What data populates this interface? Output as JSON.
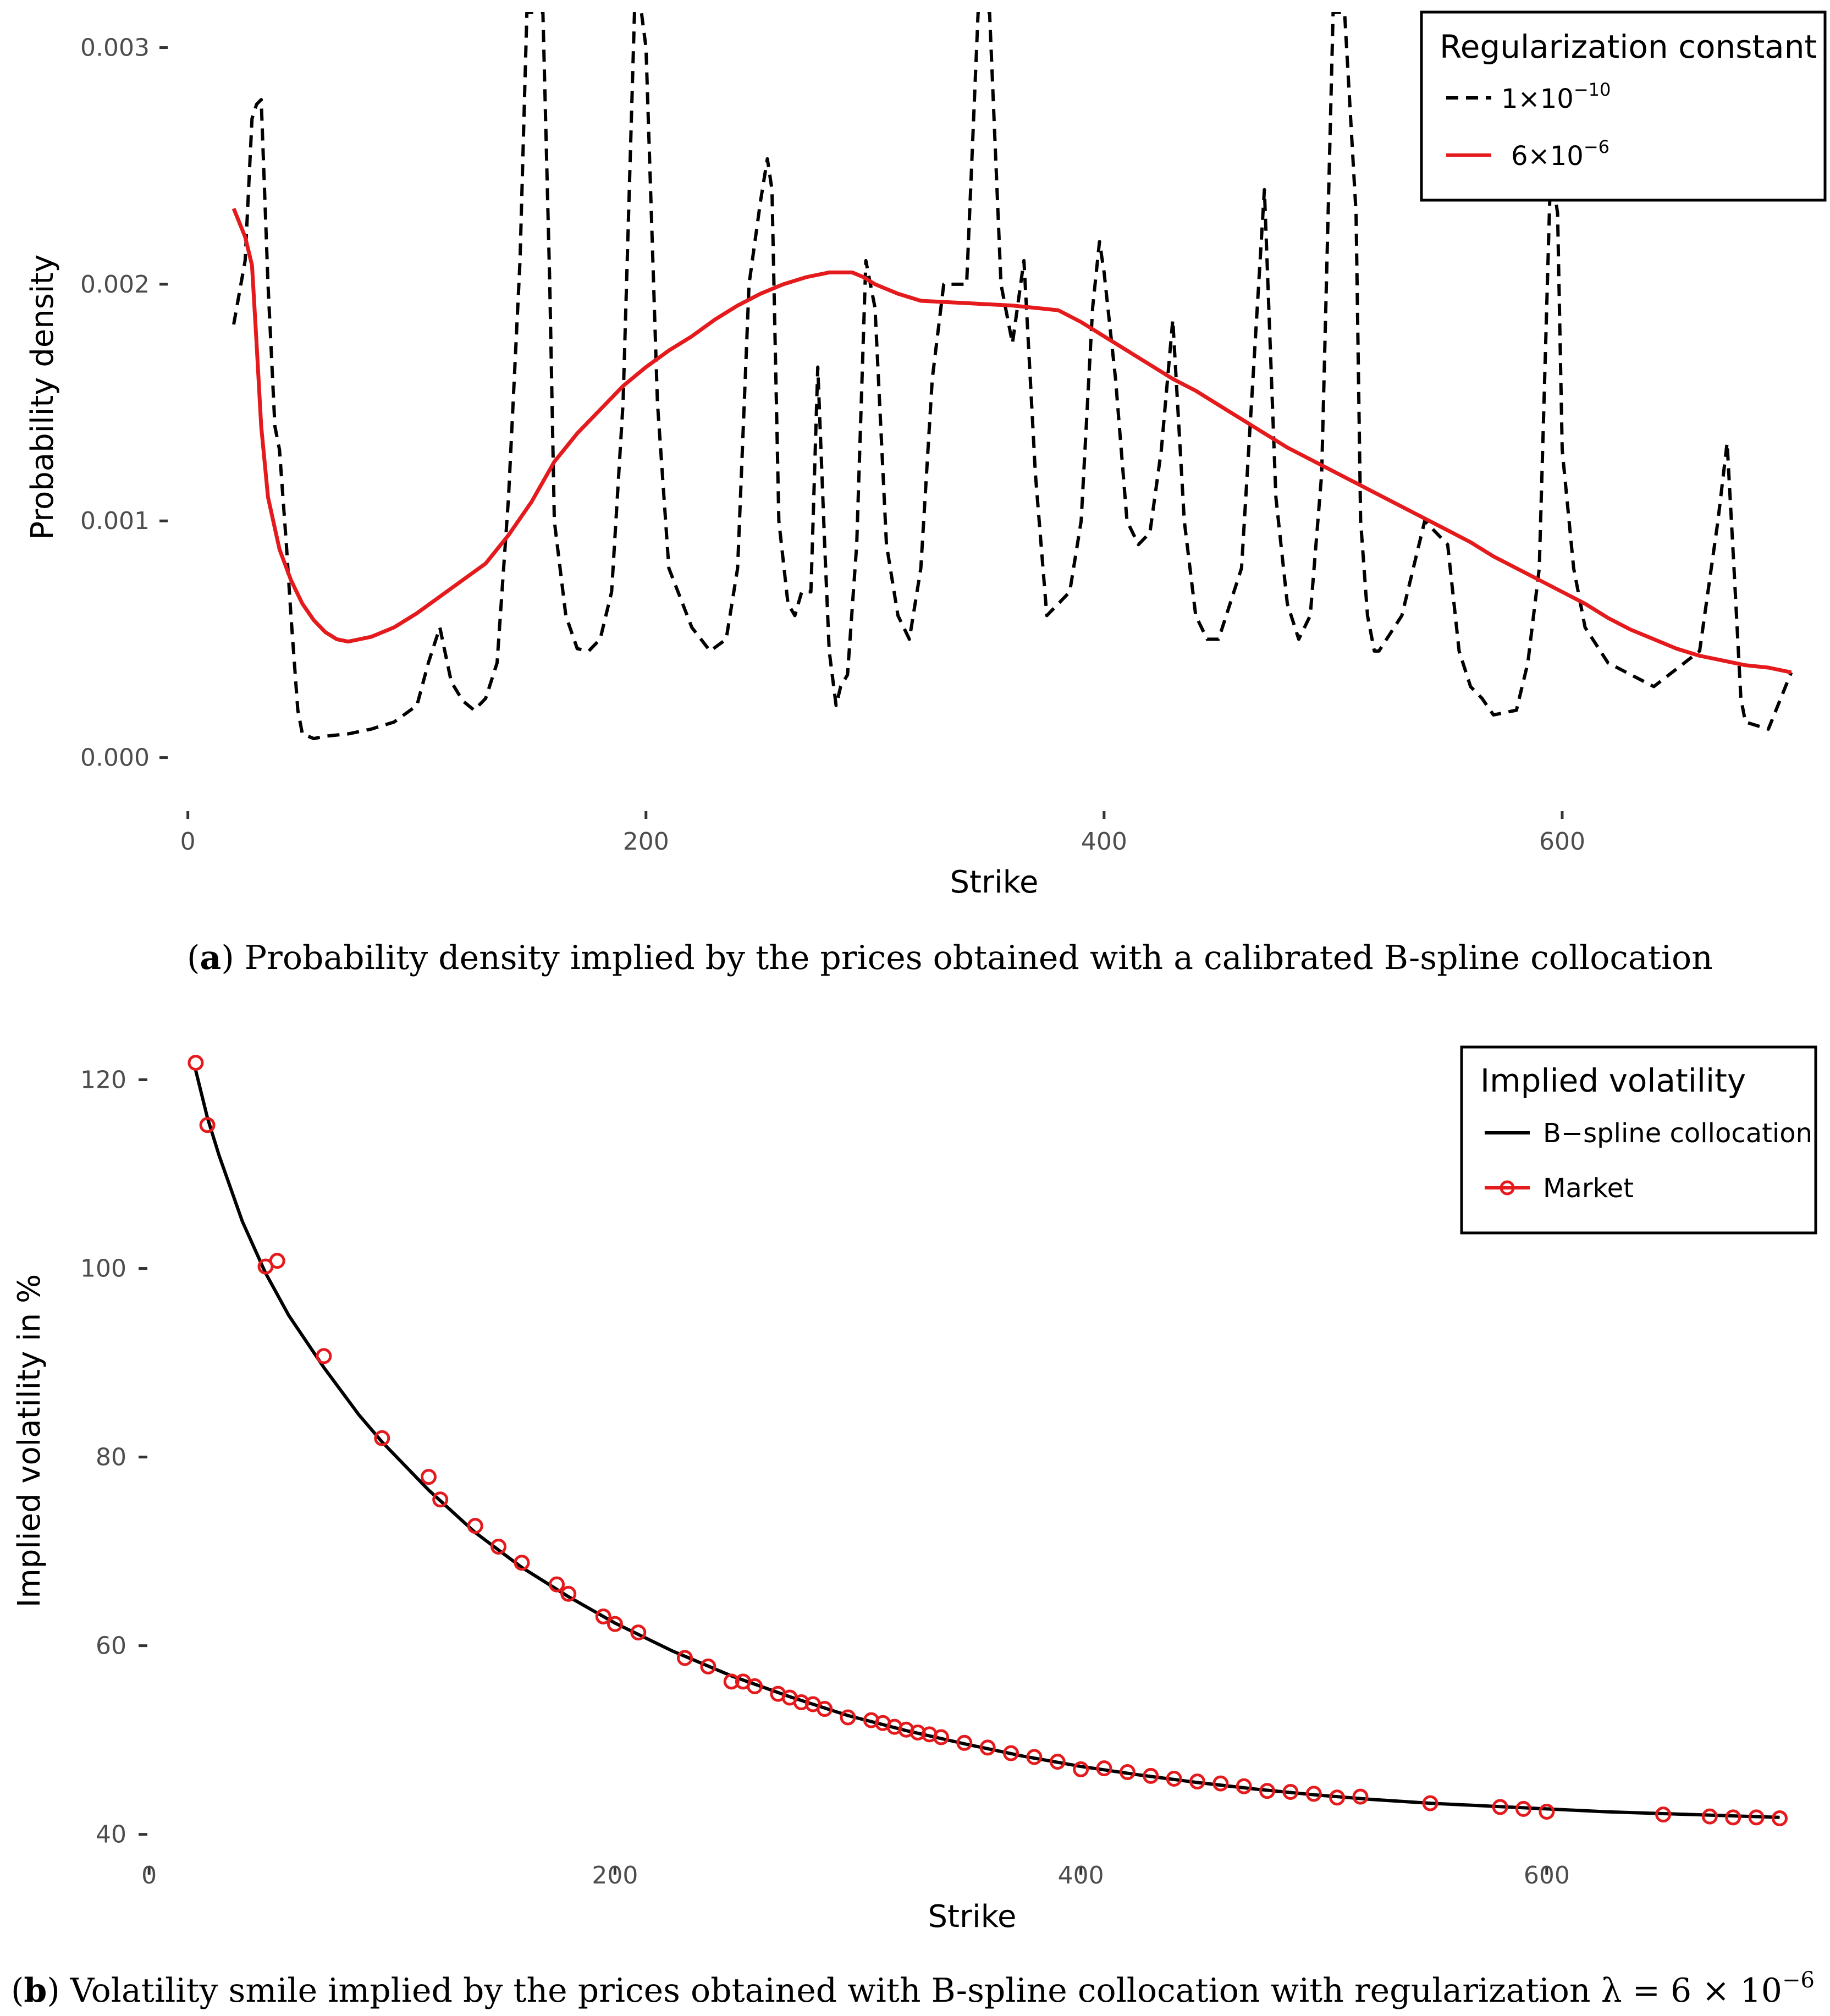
{
  "chart_data": [
    {
      "type": "line",
      "panel": "a",
      "caption": {
        "letter": "a",
        "text": "Probability density implied by the prices obtained with a calibrated B-spline collocation"
      },
      "xlabel": "Strike",
      "ylabel": "Probability density",
      "xlim": [
        -10,
        715
      ],
      "ylim": [
        -8e-05,
        0.00315
      ],
      "x_ticks": [
        0,
        200,
        400,
        600
      ],
      "y_ticks": [
        0.0,
        0.001,
        0.002,
        0.003
      ],
      "y_tick_labels": [
        "0.000",
        "0.001",
        "0.002",
        "0.003"
      ],
      "grid": false,
      "legend": {
        "title": "Regularization constant",
        "position": "top-right",
        "entries": [
          {
            "label": "1×10",
            "exponent": "−10",
            "style": "dashed",
            "color": "#000000"
          },
          {
            "label": "6×10",
            "exponent": "−6",
            "style": "solid",
            "color": "#e41a1c"
          }
        ]
      },
      "series": [
        {
          "name": "1e-10",
          "color": "#000000",
          "dash": true,
          "x": [
            20,
            25,
            28,
            30,
            32,
            35,
            38,
            40,
            43,
            45,
            48,
            50,
            55,
            60,
            70,
            80,
            90,
            100,
            105,
            110,
            115,
            120,
            125,
            130,
            135,
            140,
            145,
            148,
            150,
            155,
            158,
            160,
            165,
            170,
            175,
            180,
            185,
            190,
            195,
            198,
            200,
            205,
            210,
            220,
            228,
            235,
            240,
            245,
            250,
            253,
            255,
            258,
            262,
            265,
            268,
            272,
            275,
            278,
            280,
            283,
            285,
            288,
            292,
            296,
            300,
            305,
            310,
            315,
            320,
            325,
            330,
            335,
            340,
            345,
            350,
            355,
            360,
            365,
            370,
            375,
            380,
            385,
            390,
            395,
            398,
            400,
            405,
            410,
            415,
            420,
            425,
            430,
            435,
            440,
            445,
            450,
            460,
            470,
            475,
            480,
            485,
            490,
            495,
            500,
            505,
            510,
            512,
            515,
            518,
            520,
            530,
            540,
            550,
            555,
            560,
            565,
            570,
            580,
            585,
            590,
            595,
            598,
            600,
            605,
            610,
            620,
            640,
            660,
            668,
            672,
            675,
            678,
            680,
            690,
            700
          ],
          "values": [
            0.00183,
            0.0021,
            0.0027,
            0.00276,
            0.00278,
            0.002,
            0.0014,
            0.0013,
            0.0009,
            0.0006,
            0.0002,
            0.0001,
            8e-05,
            9e-05,
            0.0001,
            0.00012,
            0.00015,
            0.00022,
            0.0004,
            0.00055,
            0.00032,
            0.00024,
            0.0002,
            0.00025,
            0.0004,
            0.0011,
            0.0021,
            0.00315,
            0.00315,
            0.00315,
            0.002,
            0.001,
            0.0006,
            0.00046,
            0.00045,
            0.0005,
            0.0007,
            0.0015,
            0.00315,
            0.00315,
            0.003,
            0.0015,
            0.0008,
            0.00055,
            0.00045,
            0.0005,
            0.0008,
            0.002,
            0.00235,
            0.00253,
            0.0024,
            0.001,
            0.00065,
            0.0006,
            0.0007,
            0.0007,
            0.00165,
            0.0009,
            0.00045,
            0.00022,
            0.0003,
            0.00035,
            0.0009,
            0.0021,
            0.0019,
            0.0009,
            0.0006,
            0.0005,
            0.0008,
            0.0016,
            0.002,
            0.002,
            0.002,
            0.00315,
            0.00315,
            0.002,
            0.00175,
            0.0021,
            0.0012,
            0.0006,
            0.00065,
            0.0007,
            0.001,
            0.0019,
            0.00218,
            0.00205,
            0.0016,
            0.001,
            0.0009,
            0.00095,
            0.0013,
            0.00185,
            0.001,
            0.0006,
            0.0005,
            0.0005,
            0.0008,
            0.0024,
            0.0011,
            0.00065,
            0.0005,
            0.0006,
            0.0012,
            0.00315,
            0.00315,
            0.0023,
            0.001,
            0.0006,
            0.00045,
            0.00045,
            0.0006,
            0.001,
            0.0009,
            0.00045,
            0.0003,
            0.00025,
            0.00018,
            0.0002,
            0.0004,
            0.0008,
            0.0025,
            0.0023,
            0.0013,
            0.0008,
            0.00055,
            0.0004,
            0.0003,
            0.00045,
            0.001,
            0.00133,
            0.0008,
            0.00025,
            0.00015,
            0.00012,
            0.00036
          ]
        },
        {
          "name": "6e-6",
          "color": "#e41a1c",
          "dash": false,
          "x": [
            20,
            25,
            28,
            30,
            32,
            35,
            40,
            45,
            50,
            55,
            60,
            65,
            70,
            80,
            90,
            100,
            110,
            120,
            130,
            140,
            150,
            160,
            170,
            180,
            190,
            200,
            210,
            220,
            230,
            240,
            250,
            260,
            270,
            280,
            290,
            295,
            300,
            310,
            320,
            340,
            360,
            380,
            390,
            400,
            410,
            420,
            430,
            440,
            450,
            460,
            470,
            480,
            490,
            500,
            510,
            520,
            530,
            540,
            550,
            560,
            570,
            580,
            590,
            600,
            610,
            620,
            630,
            640,
            650,
            660,
            670,
            680,
            690,
            700
          ],
          "values": [
            0.00232,
            0.0022,
            0.00208,
            0.00175,
            0.0014,
            0.0011,
            0.00088,
            0.00075,
            0.00065,
            0.00058,
            0.00053,
            0.0005,
            0.00049,
            0.00051,
            0.00055,
            0.00061,
            0.00068,
            0.00075,
            0.00082,
            0.00094,
            0.00108,
            0.00125,
            0.00137,
            0.00147,
            0.00157,
            0.00165,
            0.00172,
            0.00178,
            0.00185,
            0.00191,
            0.00196,
            0.002,
            0.00203,
            0.00205,
            0.00205,
            0.00203,
            0.002,
            0.00196,
            0.00193,
            0.00192,
            0.00191,
            0.00189,
            0.00184,
            0.00178,
            0.00172,
            0.00166,
            0.0016,
            0.00155,
            0.00149,
            0.00143,
            0.00137,
            0.00131,
            0.00126,
            0.00121,
            0.00116,
            0.00111,
            0.00106,
            0.00101,
            0.00096,
            0.00091,
            0.00085,
            0.0008,
            0.00075,
            0.0007,
            0.00065,
            0.00059,
            0.00054,
            0.0005,
            0.00046,
            0.00043,
            0.00041,
            0.00039,
            0.00038,
            0.00036
          ]
        }
      ]
    },
    {
      "type": "line",
      "panel": "b",
      "caption": {
        "letter": "b",
        "text": "Volatility smile implied by the prices obtained with B-spline collocation with regularization λ = 6 × 10",
        "exponent": "−6"
      },
      "xlabel": "Strike",
      "ylabel": "Implied volatility in %",
      "xlim": [
        -5,
        715
      ],
      "ylim": [
        38,
        123
      ],
      "x_ticks": [
        0,
        200,
        400,
        600
      ],
      "y_ticks": [
        40,
        60,
        80,
        100,
        120
      ],
      "y_tick_labels": [
        "40",
        "60",
        "80",
        "100",
        "120"
      ],
      "grid": false,
      "legend": {
        "title": "Implied volatility",
        "position": "top-right",
        "entries": [
          {
            "label": "B−spline collocation",
            "style": "solid",
            "color": "#000000"
          },
          {
            "label": "Market",
            "style": "solid-points",
            "color": "#e41a1c"
          }
        ]
      },
      "series": [
        {
          "name": "B-spline collocation",
          "color": "#000000",
          "x": [
            20,
            25,
            30,
            40,
            50,
            60,
            75,
            90,
            100,
            120,
            140,
            160,
            180,
            200,
            225,
            250,
            275,
            300,
            325,
            350,
            375,
            400,
            425,
            450,
            475,
            500,
            525,
            550,
            575,
            600,
            625,
            650,
            675,
            700
          ],
          "values": [
            121.0,
            116.0,
            112.0,
            105.0,
            99.5,
            95.0,
            89.5,
            84.5,
            81.6,
            76.5,
            72.0,
            68.3,
            65.2,
            62.4,
            59.4,
            56.8,
            54.6,
            52.6,
            51.0,
            49.6,
            48.3,
            47.2,
            46.3,
            45.5,
            44.8,
            44.2,
            43.7,
            43.3,
            43.0,
            42.7,
            42.4,
            42.2,
            42.0,
            41.8
          ]
        },
        {
          "name": "Market",
          "color": "#e41a1c",
          "x": [
            20,
            25,
            50,
            55,
            75,
            100,
            120,
            125,
            140,
            150,
            160,
            175,
            180,
            195,
            200,
            210,
            230,
            240,
            250,
            255,
            260,
            270,
            275,
            280,
            285,
            290,
            300,
            310,
            315,
            320,
            325,
            330,
            335,
            340,
            350,
            360,
            370,
            380,
            390,
            400,
            410,
            420,
            430,
            440,
            450,
            460,
            470,
            480,
            490,
            500,
            510,
            520,
            550,
            580,
            590,
            600,
            650,
            670,
            680,
            690,
            700
          ],
          "values": [
            121.8,
            115.2,
            100.2,
            100.8,
            90.7,
            82.0,
            77.9,
            75.5,
            72.7,
            70.5,
            68.8,
            66.5,
            65.5,
            63.1,
            62.3,
            61.4,
            58.7,
            57.8,
            56.2,
            56.2,
            55.7,
            54.9,
            54.5,
            54.0,
            53.8,
            53.3,
            52.4,
            52.1,
            51.8,
            51.4,
            51.1,
            50.8,
            50.6,
            50.3,
            49.7,
            49.2,
            48.6,
            48.2,
            47.7,
            46.9,
            47.0,
            46.6,
            46.2,
            45.9,
            45.6,
            45.4,
            45.1,
            44.6,
            44.5,
            44.3,
            43.9,
            44.0,
            43.3,
            42.9,
            42.7,
            42.4,
            42.1,
            41.9,
            41.8,
            41.8,
            41.7
          ]
        }
      ]
    }
  ]
}
